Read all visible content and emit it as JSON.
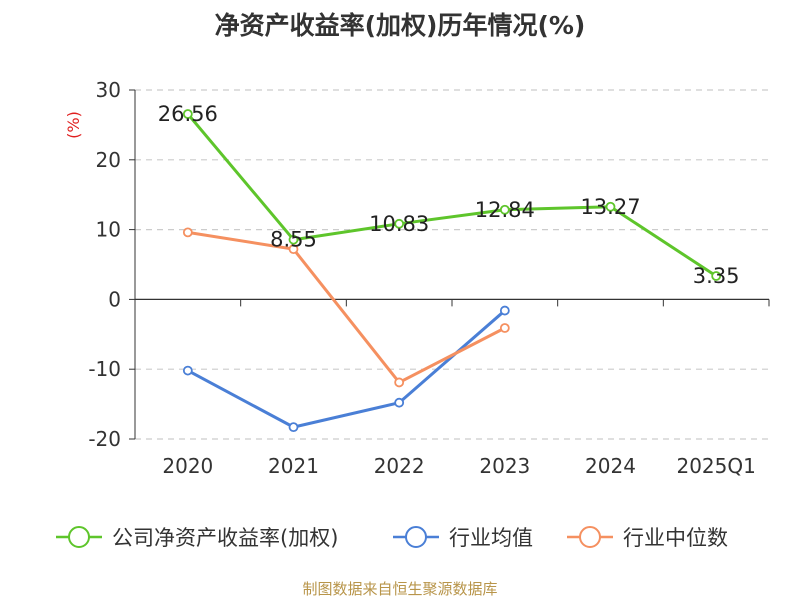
{
  "chart_data": {
    "type": "line",
    "title": "净资产收益率(加权)历年情况(%)",
    "ylabel": "(%)",
    "categories": [
      "2020",
      "2021",
      "2022",
      "2023",
      "2024",
      "2025Q1"
    ],
    "yticks": [
      "30",
      "20",
      "10",
      "0",
      "-10",
      "-20"
    ],
    "ylim": [
      -20,
      30
    ],
    "grid": true,
    "legend_position": "bottom",
    "series": [
      {
        "name": "公司净资产收益率(加权)",
        "color": "#5ec52b",
        "values": [
          26.56,
          8.55,
          10.83,
          12.84,
          13.27,
          3.35
        ],
        "labels": [
          "26.56",
          "8.55",
          "10.83",
          "12.84",
          "13.27",
          "3.35"
        ]
      },
      {
        "name": "行业均值",
        "color": "#4a7fd6",
        "values": [
          -10.2,
          -18.3,
          -14.8,
          -1.6,
          null,
          null
        ]
      },
      {
        "name": "行业中位数",
        "color": "#f59060",
        "values": [
          9.6,
          7.2,
          -11.9,
          -4.1,
          null,
          null
        ]
      }
    ],
    "source": "制图数据来自恒生聚源数据库",
    "colors": {
      "axis": "#333333",
      "grid": "#cccccc",
      "unit": "#e02020",
      "source": "#b8954a"
    }
  }
}
